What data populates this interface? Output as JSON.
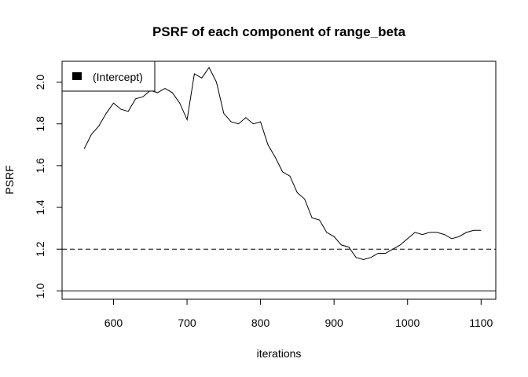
{
  "chart_data": {
    "type": "line",
    "title": "PSRF of each component of range_beta",
    "xlabel": "iterations",
    "ylabel": "PSRF",
    "xlim": [
      530,
      1120
    ],
    "ylim": [
      0.96,
      2.1
    ],
    "x_ticks": [
      600,
      700,
      800,
      900,
      1000,
      1100
    ],
    "x_tick_labels": [
      "600",
      "700",
      "800",
      "900",
      "1000",
      "1100"
    ],
    "y_ticks": [
      1.0,
      1.2,
      1.4,
      1.6,
      1.8,
      2.0
    ],
    "y_tick_labels": [
      "1.0",
      "1.2",
      "1.4",
      "1.6",
      "1.8",
      "2.0"
    ],
    "legend": {
      "position": "top-left",
      "entries": [
        "(Intercept)"
      ]
    },
    "reference_lines": [
      {
        "y": 1.2,
        "style": "dashed"
      },
      {
        "y": 1.0,
        "style": "solid"
      }
    ],
    "series": [
      {
        "name": "(Intercept)",
        "x": [
          560,
          570,
          580,
          590,
          600,
          610,
          620,
          630,
          640,
          650,
          660,
          670,
          680,
          690,
          700,
          710,
          720,
          730,
          740,
          750,
          760,
          770,
          780,
          790,
          800,
          810,
          820,
          830,
          840,
          850,
          860,
          870,
          880,
          890,
          900,
          910,
          920,
          930,
          940,
          950,
          960,
          970,
          980,
          990,
          1000,
          1010,
          1020,
          1030,
          1040,
          1050,
          1060,
          1070,
          1080,
          1090,
          1100
        ],
        "values": [
          1.68,
          1.75,
          1.79,
          1.85,
          1.9,
          1.87,
          1.86,
          1.92,
          1.93,
          1.96,
          1.95,
          1.97,
          1.95,
          1.9,
          1.82,
          2.04,
          2.02,
          2.07,
          2.0,
          1.85,
          1.81,
          1.8,
          1.83,
          1.8,
          1.81,
          1.7,
          1.64,
          1.57,
          1.55,
          1.47,
          1.44,
          1.35,
          1.34,
          1.28,
          1.26,
          1.22,
          1.21,
          1.16,
          1.15,
          1.16,
          1.18,
          1.18,
          1.2,
          1.22,
          1.25,
          1.28,
          1.27,
          1.28,
          1.28,
          1.27,
          1.25,
          1.26,
          1.28,
          1.29,
          1.29
        ]
      }
    ]
  }
}
